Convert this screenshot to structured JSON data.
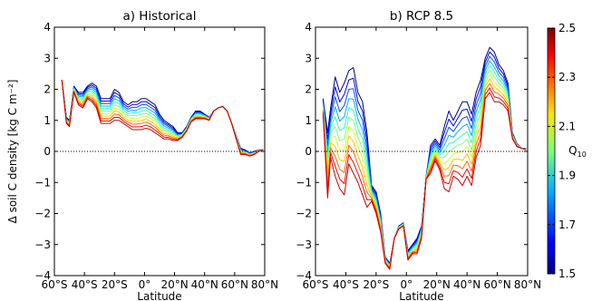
{
  "chart_data": [
    {
      "type": "line",
      "title": "a) Historical",
      "xlabel": "Latitude",
      "ylabel": "Δ soil C density [kg C m⁻²]",
      "xlim": [
        -60,
        80
      ],
      "ylim": [
        -4,
        4
      ],
      "xticks": [
        -60,
        -40,
        -20,
        0,
        20,
        40,
        60,
        80
      ],
      "xtick_labels": [
        "60°S",
        "40°S",
        "20°S",
        "0°",
        "20°N",
        "40°N",
        "60°N",
        "80°N"
      ],
      "yticks": [
        -4,
        -3,
        -2,
        -1,
        0,
        1,
        2,
        3,
        4
      ],
      "ytick_labels": [
        "−4",
        "−3",
        "−2",
        "−1",
        "0",
        "1",
        "2",
        "3",
        "4"
      ],
      "reference_line": {
        "y": 0,
        "style": "dotted"
      },
      "x": [
        -55,
        -52,
        -50,
        -47,
        -44,
        -41,
        -38,
        -35,
        -32,
        -29,
        -26,
        -23,
        -20,
        -17,
        -14,
        -11,
        -8,
        -5,
        -2,
        1,
        4,
        7,
        10,
        13,
        16,
        19,
        22,
        25,
        28,
        31,
        34,
        37,
        40,
        43,
        46,
        49,
        52,
        55,
        58,
        61,
        64,
        67,
        70,
        73,
        76,
        79
      ],
      "series": [
        {
          "q10": 1.5,
          "values": [
            2.3,
            1.1,
            1.0,
            2.1,
            1.9,
            1.9,
            2.1,
            2.2,
            2.1,
            1.7,
            1.7,
            1.7,
            2.0,
            1.9,
            1.6,
            1.5,
            1.6,
            1.6,
            1.7,
            1.7,
            1.6,
            1.5,
            1.2,
            1.0,
            0.9,
            0.8,
            0.6,
            0.6,
            0.8,
            1.1,
            1.3,
            1.3,
            1.2,
            1.1,
            1.3,
            1.4,
            1.45,
            1.3,
            0.9,
            0.5,
            0.1,
            0.05,
            -0.05,
            0.0,
            0.05,
            0.05
          ]
        },
        {
          "q10": 2.5,
          "values": [
            2.3,
            0.9,
            0.8,
            1.9,
            1.5,
            1.4,
            1.7,
            1.6,
            1.4,
            0.9,
            0.9,
            0.9,
            1.0,
            1.0,
            0.9,
            0.8,
            0.7,
            0.7,
            0.7,
            0.75,
            0.7,
            0.6,
            0.5,
            0.4,
            0.4,
            0.35,
            0.35,
            0.45,
            0.65,
            0.95,
            1.05,
            1.05,
            1.05,
            1.0,
            1.3,
            1.4,
            1.45,
            1.3,
            0.9,
            0.4,
            -0.1,
            -0.1,
            -0.15,
            -0.1,
            0.0,
            0.05
          ]
        }
      ]
    },
    {
      "type": "line",
      "title": "b) RCP 8.5",
      "xlabel": "Latitude",
      "xlim": [
        -60,
        80
      ],
      "ylim": [
        -4,
        4
      ],
      "xticks": [
        -60,
        -40,
        -20,
        0,
        20,
        40,
        60,
        80
      ],
      "xtick_labels": [
        "60°S",
        "40°S",
        "20°S",
        "0°",
        "20°N",
        "40°N",
        "60°N",
        "80°N"
      ],
      "yticks": [
        -4,
        -3,
        -2,
        -1,
        0,
        1,
        2,
        3,
        4
      ],
      "ytick_labels": [
        "−4",
        "−3",
        "−2",
        "−1",
        "0",
        "1",
        "2",
        "3",
        "4"
      ],
      "reference_line": {
        "y": 0,
        "style": "dotted"
      },
      "x": [
        -55,
        -52,
        -50,
        -47,
        -44,
        -41,
        -38,
        -35,
        -32,
        -29,
        -26,
        -23,
        -20,
        -17,
        -14,
        -11,
        -8,
        -5,
        -2,
        1,
        4,
        7,
        10,
        13,
        16,
        19,
        22,
        25,
        28,
        31,
        34,
        37,
        40,
        43,
        46,
        49,
        52,
        55,
        58,
        61,
        64,
        67,
        70,
        73,
        76,
        79
      ],
      "series": [
        {
          "q10": 1.5,
          "values": [
            1.7,
            0.6,
            1.4,
            2.4,
            1.9,
            2.2,
            2.6,
            2.7,
            1.9,
            1.6,
            0.6,
            -1.1,
            -1.3,
            -2.0,
            -3.4,
            -3.6,
            -2.8,
            -2.4,
            -2.3,
            -3.2,
            -3.0,
            -2.8,
            -2.4,
            -0.8,
            0.2,
            0.4,
            0.2,
            0.8,
            1.3,
            1.0,
            1.3,
            1.6,
            1.6,
            1.2,
            1.9,
            2.3,
            3.0,
            3.35,
            3.2,
            2.8,
            2.6,
            2.2,
            0.6,
            0.25,
            0.1,
            0.1
          ]
        },
        {
          "q10": 2.5,
          "values": [
            1.2,
            -1.5,
            -0.2,
            -0.8,
            -1.2,
            -1.4,
            -0.4,
            -0.7,
            -1.0,
            -1.4,
            -1.8,
            -1.6,
            -2.0,
            -2.6,
            -3.6,
            -3.8,
            -2.8,
            -2.5,
            -2.4,
            -3.5,
            -3.3,
            -3.3,
            -2.8,
            -0.9,
            -0.7,
            -0.3,
            -0.6,
            -1.2,
            -1.3,
            -0.8,
            -0.9,
            -1.1,
            -0.8,
            -1.1,
            -0.2,
            0.2,
            1.7,
            1.9,
            1.6,
            1.6,
            1.5,
            1.3,
            0.4,
            0.15,
            0.1,
            0.05
          ]
        }
      ]
    }
  ],
  "colorbar": {
    "label": "Q",
    "label_subscript": "10",
    "range": [
      1.5,
      2.5
    ],
    "ticks": [
      "1.5",
      "1.7",
      "1.9",
      "2.1",
      "2.3",
      "2.5"
    ],
    "n_lines": 11,
    "colormap": "jet",
    "colors": [
      "#000080",
      "#0000f1",
      "#004dff",
      "#00b1ff",
      "#29ffce",
      "#7dff7a",
      "#ceff29",
      "#ffc400",
      "#ff6800",
      "#f10800",
      "#cc0000"
    ]
  }
}
